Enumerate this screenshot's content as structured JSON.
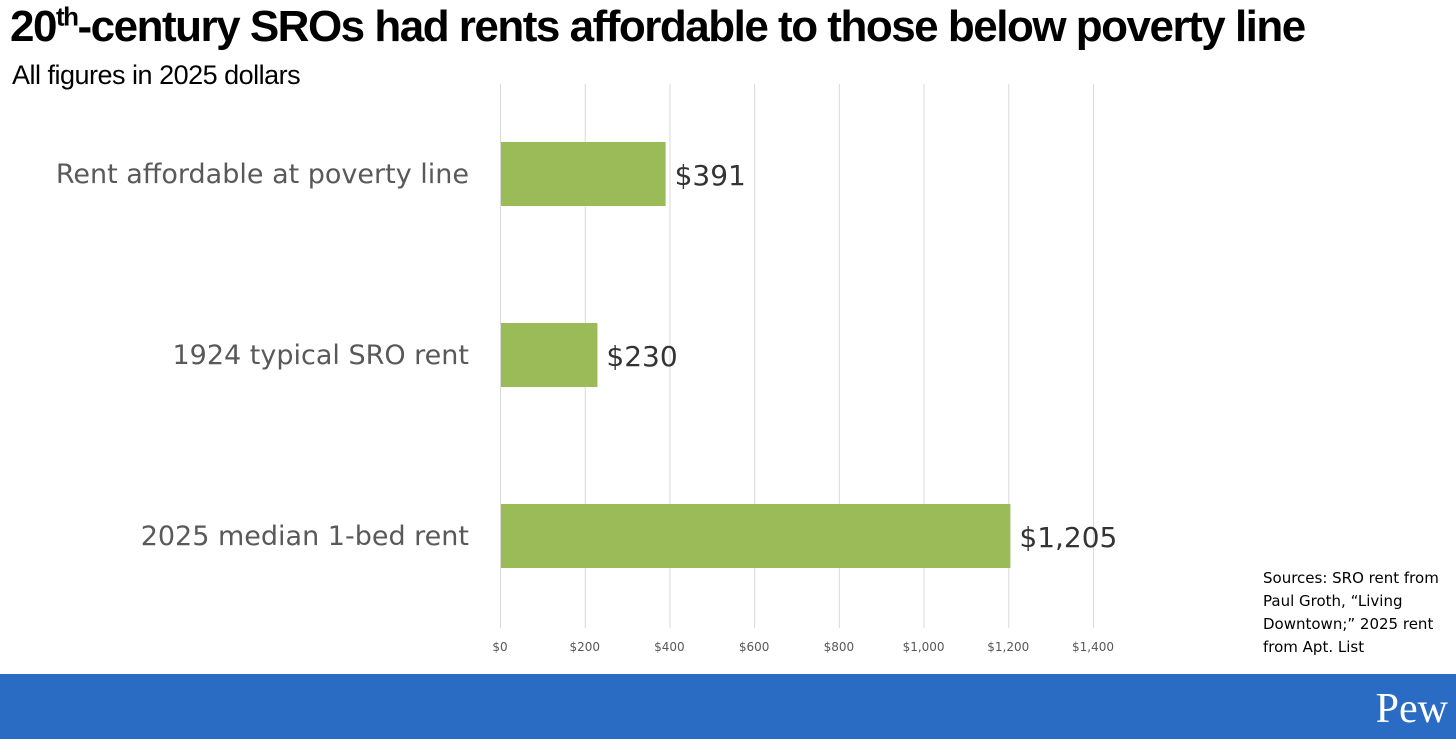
{
  "header": {
    "title_prefix": "20",
    "title_sup": "th",
    "title_rest": "-century SROs had rents affordable to those below poverty line",
    "subtitle": "All figures in 2025 dollars"
  },
  "chart_data": {
    "type": "bar",
    "orientation": "horizontal",
    "title": "20th-century SROs had rents affordable to those below poverty line",
    "subtitle": "All figures in 2025 dollars",
    "categories": [
      "Rent affordable at poverty line",
      "1924 typical SRO rent",
      "2025 median 1-bed rent"
    ],
    "values": [
      391,
      230,
      1205
    ],
    "value_labels": [
      "$391",
      "$230",
      "$1,205"
    ],
    "xlim": [
      0,
      1400
    ],
    "x_ticks": [
      0,
      200,
      400,
      600,
      800,
      1000,
      1200,
      1400
    ],
    "x_tick_labels": [
      "$0",
      "$200",
      "$400",
      "$600",
      "$800",
      "$1,000",
      "$1,200",
      "$1,400"
    ],
    "xlabel": "",
    "ylabel": "",
    "grid": true,
    "bar_color": "#9BBB59",
    "grid_color": "#D9D9D9"
  },
  "source_lines": [
    "Sources: SRO rent from",
    "Paul Groth, “Living",
    "Downtown;” 2025 rent",
    "from Apt. List"
  ],
  "footer": {
    "logo_text": "Pew",
    "bar_color": "#2A6BC4"
  }
}
